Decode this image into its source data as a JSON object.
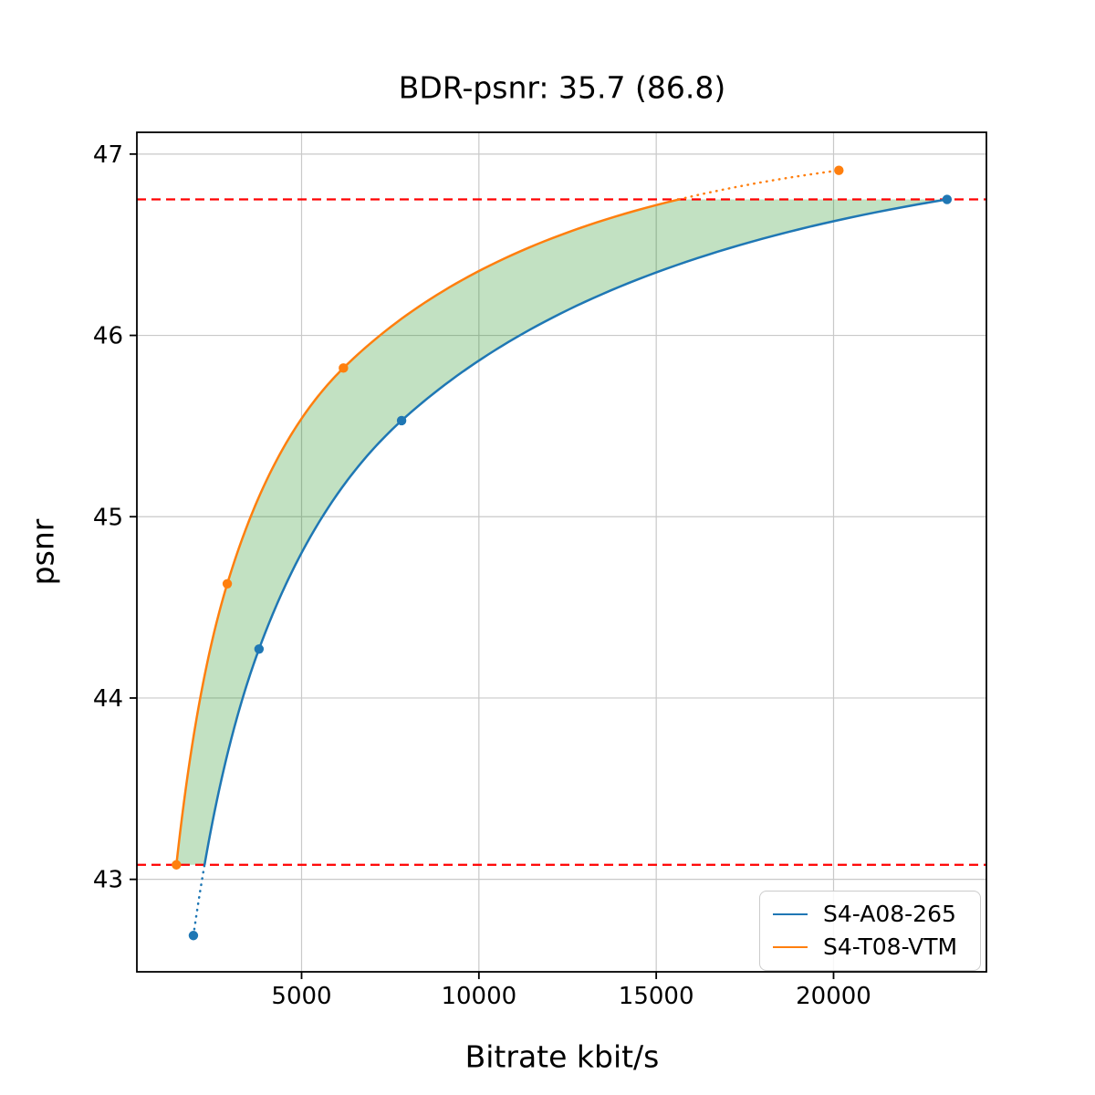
{
  "chart_data": {
    "type": "line",
    "title": "BDR-psnr: 35.7 (86.8)",
    "xlabel": "Bitrate kbit/s",
    "ylabel": "psnr",
    "xlim": [
      356,
      24310
    ],
    "ylim": [
      42.49,
      47.12
    ],
    "xticks": [
      5000,
      10000,
      15000,
      20000
    ],
    "yticks": [
      43,
      44,
      45,
      46,
      47
    ],
    "grid": true,
    "legend_position": "lower right",
    "series": [
      {
        "name": "S4-A08-265",
        "color": "#1f77b4",
        "points": [
          [
            1950,
            42.69
          ],
          [
            3800,
            44.27
          ],
          [
            7820,
            45.53
          ],
          [
            23200,
            46.75
          ]
        ]
      },
      {
        "name": "S4-T08-VTM",
        "color": "#ff7f0e",
        "points": [
          [
            1470,
            43.08
          ],
          [
            2905,
            44.63
          ],
          [
            6180,
            45.82
          ],
          [
            20150,
            46.91
          ]
        ]
      }
    ],
    "ref_lines": {
      "color": "#ff0000",
      "style": "dashed",
      "values": [
        43.08,
        46.75
      ]
    },
    "fill_between": {
      "color": "rgba(0,128,0,0.24)",
      "range": [
        43.08,
        46.75
      ]
    },
    "grid_color": "#c9c9c9",
    "spine_color": "#000000"
  }
}
